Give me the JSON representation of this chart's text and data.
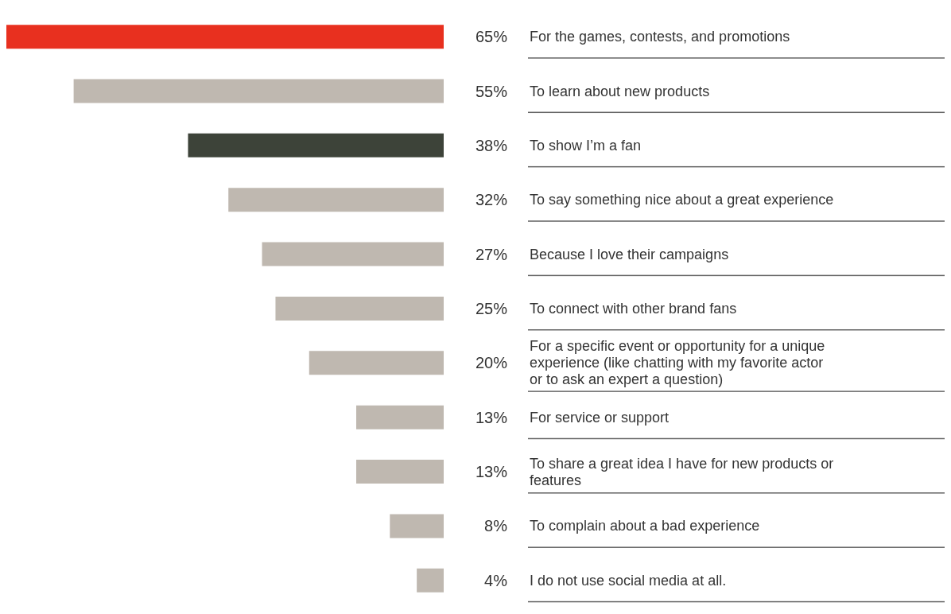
{
  "chart_data": {
    "type": "bar",
    "orientation": "horizontal",
    "categories": [
      "For the games, contests, and promotions",
      "To learn about new products",
      "To show I’m a fan",
      "To say something nice about a great experience",
      "Because I love their campaigns",
      "To connect with other brand fans",
      "For a specific event or opportunity for a unique experience (like chatting with my favorite actor or to ask an expert a question)",
      "For service or support",
      "To share a great idea I have for new products or features",
      "To complain about a bad experience",
      "I do not use social media at all."
    ],
    "values": [
      65,
      55,
      38,
      32,
      27,
      25,
      20,
      13,
      13,
      8,
      4
    ],
    "value_labels": [
      "65%",
      "55%",
      "38%",
      "32%",
      "27%",
      "25%",
      "20%",
      "13%",
      "13%",
      "8%",
      "4%"
    ],
    "colors": [
      "#e8301f",
      "#bfb8b0",
      "#3d4339",
      "#bfb8b0",
      "#bfb8b0",
      "#bfb8b0",
      "#bfb8b0",
      "#bfb8b0",
      "#bfb8b0",
      "#bfb8b0",
      "#bfb8b0"
    ]
  }
}
